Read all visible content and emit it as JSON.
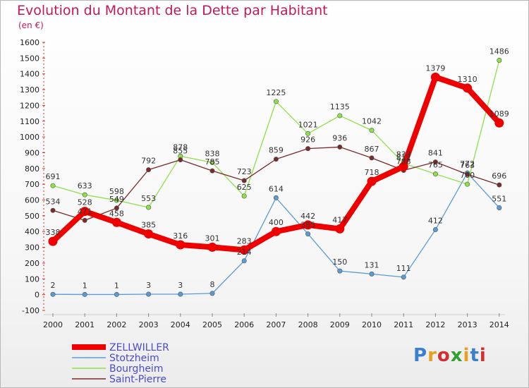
{
  "title": "Evolution du Montant de la Dette par Habitant",
  "subtitle": "(en €)",
  "logo": "Proxiti",
  "colors": {
    "title": "#c2185b",
    "ZELLWILLER": "#ee0000",
    "Stotzheim": "#5b9bd5",
    "Bourgheim": "#8ee04a",
    "Saint-Pierre": "#7a2a2a"
  },
  "chart_data": {
    "type": "line",
    "title": "Evolution du Montant de la Dette par Habitant",
    "ylabel": "(en €)",
    "x": [
      "2000",
      "2001",
      "2002",
      "2003",
      "2004",
      "2005",
      "2006",
      "2007",
      "2008",
      "2009",
      "2010",
      "2011",
      "2012",
      "2013",
      "2014"
    ],
    "ylim": [
      -100,
      1600
    ],
    "yticks": [
      -100,
      0,
      100,
      200,
      300,
      400,
      500,
      600,
      700,
      800,
      900,
      1000,
      1100,
      1200,
      1300,
      1400,
      1500,
      1600
    ],
    "grid": false,
    "legend_position": "bottom-left",
    "series": [
      {
        "name": "ZELLWILLER",
        "values": [
          338,
          528,
          458,
          385,
          316,
          301,
          283,
          400,
          442,
          417,
          718,
          812,
          1379,
          1310,
          1089
        ],
        "labels": [
          "338",
          "528",
          "458",
          "385",
          "316",
          "301",
          "283",
          "400",
          "442",
          "417",
          "718",
          "812",
          "1379",
          "1310",
          "1089"
        ]
      },
      {
        "name": "Stotzheim",
        "values": [
          2,
          1,
          1,
          3,
          3,
          8,
          214,
          614,
          385,
          150,
          131,
          111,
          412,
          772,
          551
        ],
        "labels": [
          "2",
          "1",
          "1",
          "3",
          "3",
          "8",
          "214",
          "614",
          "385",
          "150",
          "131",
          "111",
          "412",
          "772",
          "551"
        ]
      },
      {
        "name": "Bourgheim",
        "values": [
          691,
          633,
          598,
          553,
          878,
          838,
          625,
          1225,
          1021,
          1135,
          1042,
          833,
          765,
          700,
          1486
        ],
        "labels": [
          "691",
          "633",
          "598",
          "553",
          "878",
          "838",
          "625",
          "1225",
          "1021",
          "1135",
          "1042",
          "833",
          "765",
          "700",
          "1486"
        ]
      },
      {
        "name": "Saint-Pierre",
        "values": [
          534,
          471,
          549,
          792,
          855,
          785,
          723,
          859,
          926,
          936,
          867,
          788,
          841,
          763,
          696
        ],
        "labels": [
          "534",
          "471",
          "549",
          "792",
          "855",
          "785",
          "723",
          "859",
          "926",
          "936",
          "867",
          "788",
          "841",
          "763",
          "696"
        ]
      }
    ]
  }
}
